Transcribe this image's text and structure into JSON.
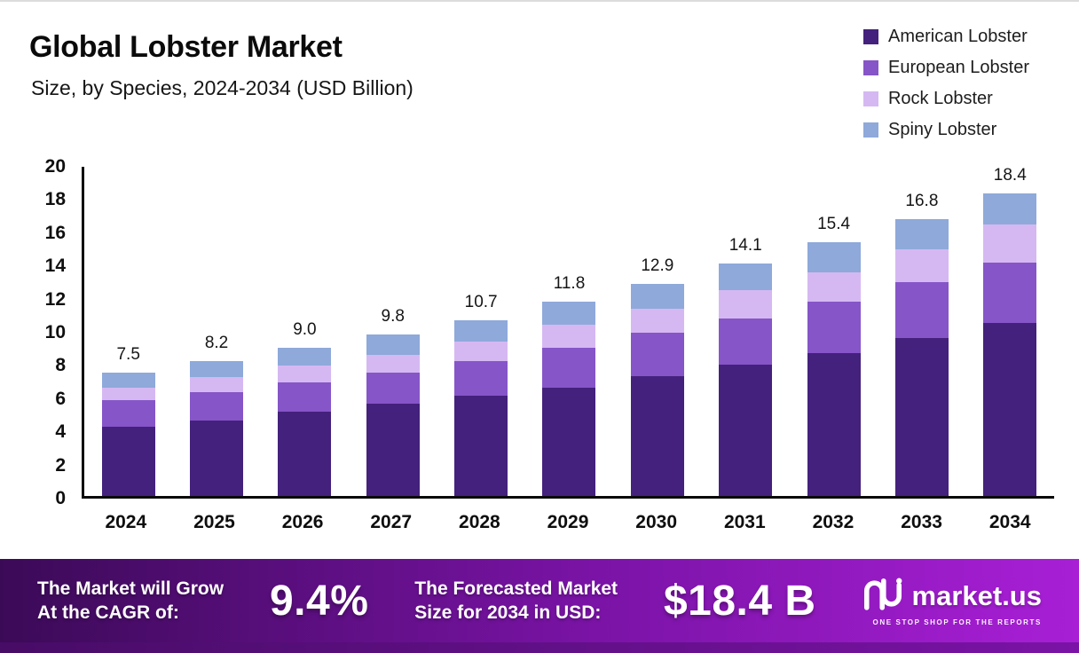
{
  "page": {
    "title": "Global Lobster Market",
    "subtitle": "Size, by Species, 2024-2034 (USD Billion)"
  },
  "chart_data": {
    "type": "bar",
    "stacked": true,
    "title": "Global Lobster Market",
    "subtitle": "Size, by Species, 2024-2034 (USD Billion)",
    "categories": [
      "2024",
      "2025",
      "2026",
      "2027",
      "2028",
      "2029",
      "2030",
      "2031",
      "2032",
      "2033",
      "2034"
    ],
    "totals": [
      "7.5",
      "8.2",
      "9.0",
      "9.8",
      "10.7",
      "11.8",
      "12.9",
      "14.1",
      "15.4",
      "16.8",
      "18.4"
    ],
    "series": [
      {
        "name": "American Lobster",
        "color": "#44217c",
        "values": [
          4.2,
          4.6,
          5.1,
          5.6,
          6.1,
          6.6,
          7.3,
          8.0,
          8.7,
          9.6,
          10.5
        ]
      },
      {
        "name": "European Lobster",
        "color": "#8655c8",
        "values": [
          1.6,
          1.7,
          1.8,
          1.9,
          2.1,
          2.4,
          2.6,
          2.8,
          3.1,
          3.4,
          3.7
        ]
      },
      {
        "name": "Rock Lobster",
        "color": "#d5b8f2",
        "values": [
          0.8,
          0.9,
          1.0,
          1.1,
          1.2,
          1.4,
          1.5,
          1.7,
          1.8,
          2.0,
          2.3
        ]
      },
      {
        "name": "Spiny Lobster",
        "color": "#8ea9da",
        "values": [
          0.9,
          1.0,
          1.1,
          1.2,
          1.3,
          1.4,
          1.5,
          1.6,
          1.8,
          1.8,
          1.9
        ]
      }
    ],
    "ylim": [
      0,
      20
    ],
    "ytick_step": 2,
    "grid": false,
    "legend_position": "top-right",
    "xlabel": "",
    "ylabel": ""
  },
  "banner": {
    "grow_line1": "The Market will Grow",
    "grow_line2": "At the CAGR of:",
    "cagr": "9.4%",
    "forecast_line1": "The Forecasted Market",
    "forecast_line2": "Size for 2034 in USD:",
    "forecast_value": "$18.4 B",
    "brand_name": "market.us",
    "brand_tagline": "ONE STOP SHOP FOR THE REPORTS",
    "gradient": [
      "#3b0a57",
      "#7a13a6",
      "#a81fd6"
    ],
    "footer_color": "#470c66"
  }
}
